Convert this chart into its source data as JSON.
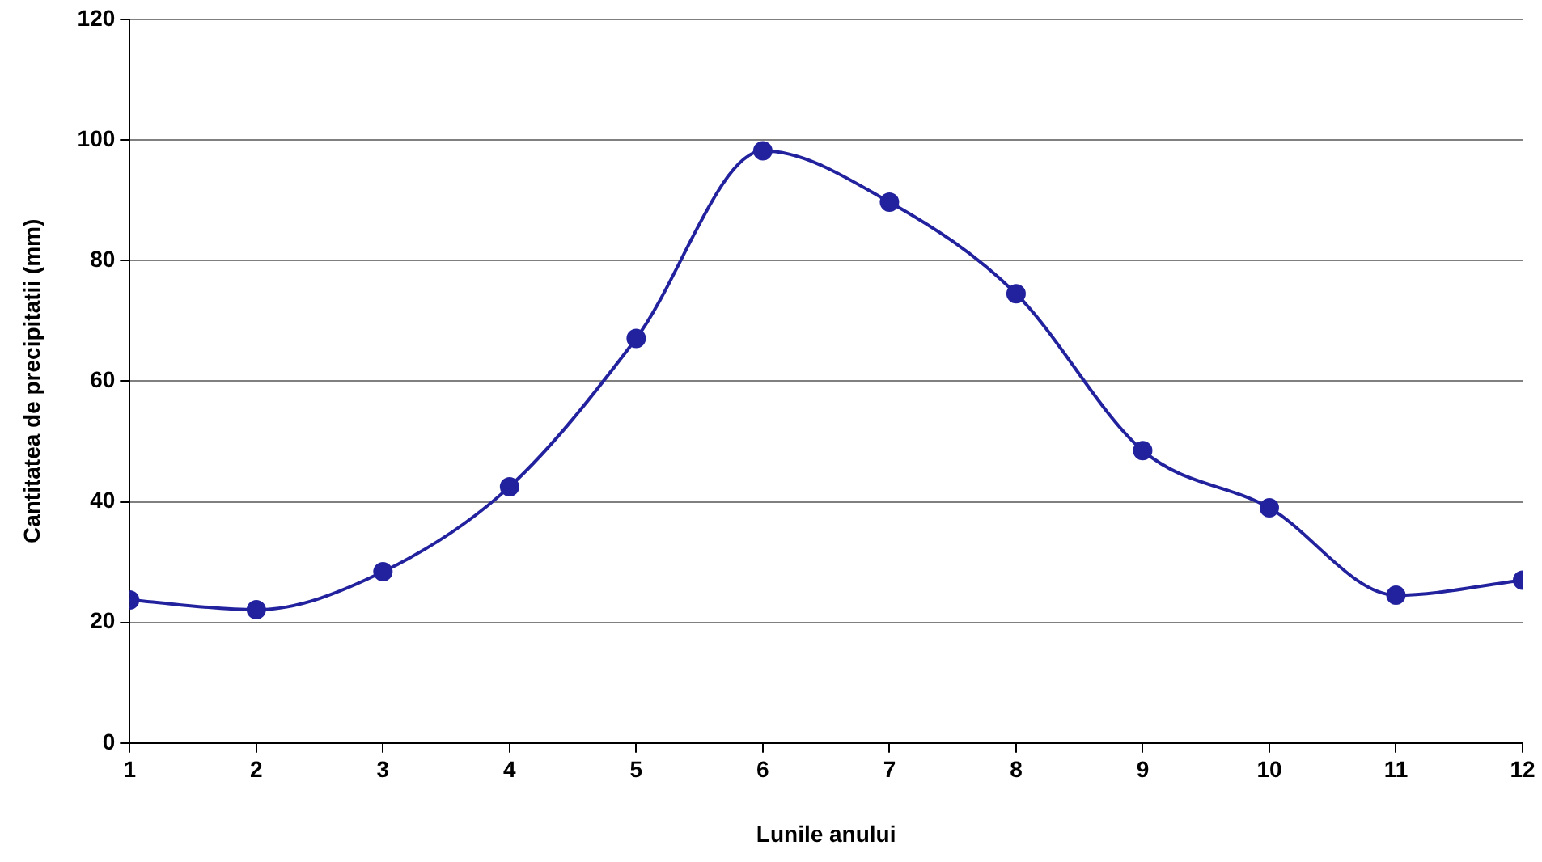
{
  "chart_data": {
    "type": "line",
    "xlabel": "Lunile anului",
    "ylabel": "Cantitatea de precipitatii (mm)",
    "x": [
      1,
      2,
      3,
      4,
      5,
      6,
      7,
      8,
      9,
      10,
      11,
      12
    ],
    "series": [
      {
        "color": "#22229e",
        "values": [
          23.7,
          22.1,
          28.4,
          42.5,
          67.1,
          98.2,
          89.7,
          74.5,
          48.5,
          39.0,
          24.5,
          27.0
        ]
      }
    ],
    "xlim": [
      1,
      12
    ],
    "xticks": [
      1,
      2,
      3,
      4,
      5,
      6,
      7,
      8,
      9,
      10,
      11,
      12
    ],
    "ylim": [
      0,
      120
    ],
    "yticks": [
      0,
      20,
      40,
      60,
      80,
      100,
      120
    ],
    "grid": "y",
    "legend": false,
    "marker": "circle",
    "line_style": "solid"
  }
}
